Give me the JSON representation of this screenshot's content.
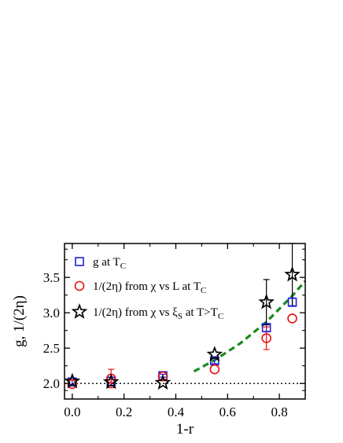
{
  "chart_data": {
    "type": "scatter",
    "xlabel": "1-r",
    "ylabel": "g, 1/(2η)",
    "xlim": [
      -0.03,
      0.9
    ],
    "ylim": [
      1.78,
      3.98
    ],
    "x_ticks": [
      "0.0",
      "0.2",
      "0.4",
      "0.6",
      "0.8"
    ],
    "x_tick_values": [
      0.0,
      0.2,
      0.4,
      0.6,
      0.8
    ],
    "y_ticks": [
      "2.0",
      "2.5",
      "3.0",
      "3.5"
    ],
    "y_tick_values": [
      2.0,
      2.5,
      3.0,
      3.5
    ],
    "legend_position": "top-left",
    "series": [
      {
        "marker": "square",
        "color": "#1f1fd6",
        "legend": [
          {
            "text": "g at T",
            "sub": "C",
            "tail": ""
          }
        ],
        "points": [
          {
            "x": 0.0,
            "y": 2.02,
            "err": 0.03
          },
          {
            "x": 0.15,
            "y": 2.03,
            "err": 0.06
          },
          {
            "x": 0.35,
            "y": 2.11,
            "err": 0.02
          },
          {
            "x": 0.55,
            "y": 2.32,
            "err": 0.04
          },
          {
            "x": 0.75,
            "y": 2.79,
            "err": 0.06
          },
          {
            "x": 0.85,
            "y": 3.15,
            "err": 0.06
          }
        ]
      },
      {
        "marker": "circle",
        "color": "#e81010",
        "legend": [
          {
            "text": "1/(2η) from χ vs L at T",
            "sub": "C",
            "tail": ""
          }
        ],
        "points": [
          {
            "x": 0.0,
            "y": 1.99,
            "err": 0.0
          },
          {
            "x": 0.15,
            "y": 2.07,
            "err": 0.13
          },
          {
            "x": 0.35,
            "y": 2.1,
            "err": 0.0
          },
          {
            "x": 0.55,
            "y": 2.2,
            "err": 0.0
          },
          {
            "x": 0.75,
            "y": 2.64,
            "err": 0.16
          },
          {
            "x": 0.85,
            "y": 2.92,
            "err": 0.0
          }
        ]
      },
      {
        "marker": "star",
        "color": "#000000",
        "legend": [
          {
            "text": "1/(2η) from χ vs ξ",
            "sub": "S",
            "tail": " at T>T"
          },
          {
            "sub2": "C"
          }
        ],
        "points": [
          {
            "x": 0.0,
            "y": 2.03,
            "err": 0.0
          },
          {
            "x": 0.15,
            "y": 2.02,
            "err": 0.0
          },
          {
            "x": 0.35,
            "y": 2.01,
            "err": 0.0
          },
          {
            "x": 0.55,
            "y": 2.41,
            "err": 0.0
          },
          {
            "x": 0.75,
            "y": 3.15,
            "err": 0.32
          },
          {
            "x": 0.85,
            "y": 3.54,
            "err": 0.44
          }
        ]
      }
    ],
    "reference_line": {
      "y": 2.0,
      "style": "dotted",
      "color": "#000000"
    },
    "fit_curve": {
      "style": "dashed",
      "color": "#1a8a1a",
      "points": [
        [
          0.47,
          2.17
        ],
        [
          0.55,
          2.33
        ],
        [
          0.65,
          2.57
        ],
        [
          0.75,
          2.87
        ],
        [
          0.85,
          3.24
        ],
        [
          0.9,
          3.45
        ]
      ]
    }
  }
}
